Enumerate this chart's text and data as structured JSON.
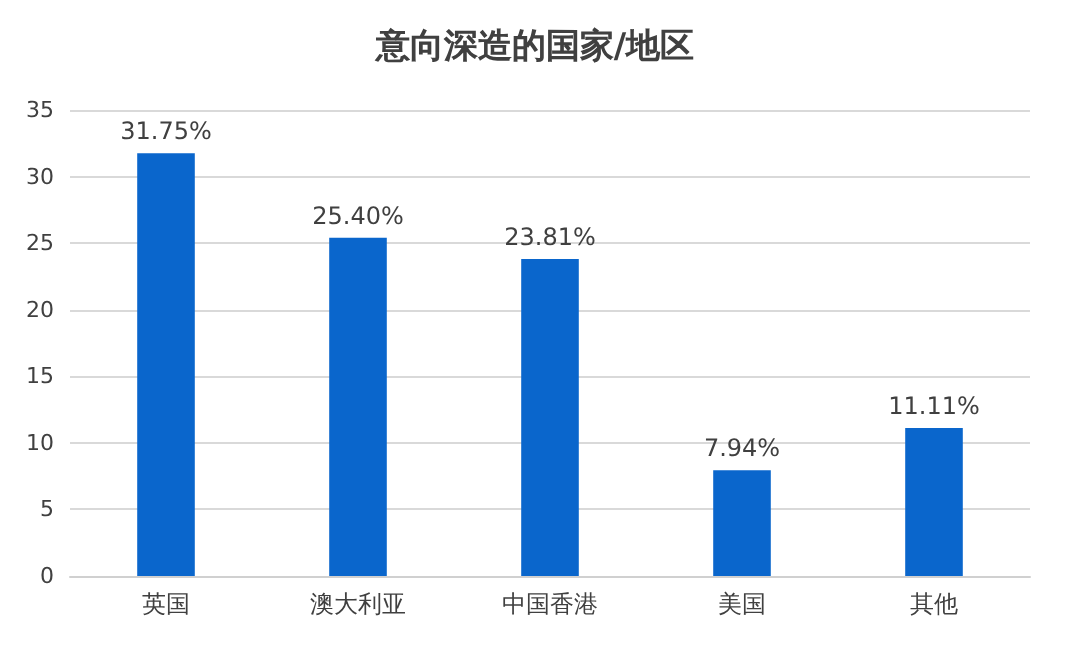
{
  "chart_data": {
    "type": "bar",
    "title": "意向深造的国家/地区",
    "categories": [
      "英国",
      "澳大利亚",
      "中国香港",
      "美国",
      "其他"
    ],
    "values": [
      31.75,
      25.4,
      23.81,
      7.94,
      11.11
    ],
    "value_labels": [
      "31.75%",
      "25.40%",
      "23.81%",
      "7.94%",
      "11.11%"
    ],
    "color": "#0a66cc",
    "ylim": [
      0,
      35
    ],
    "yticks": [
      0,
      5,
      10,
      15,
      20,
      25,
      30,
      35
    ],
    "grid": "y"
  }
}
